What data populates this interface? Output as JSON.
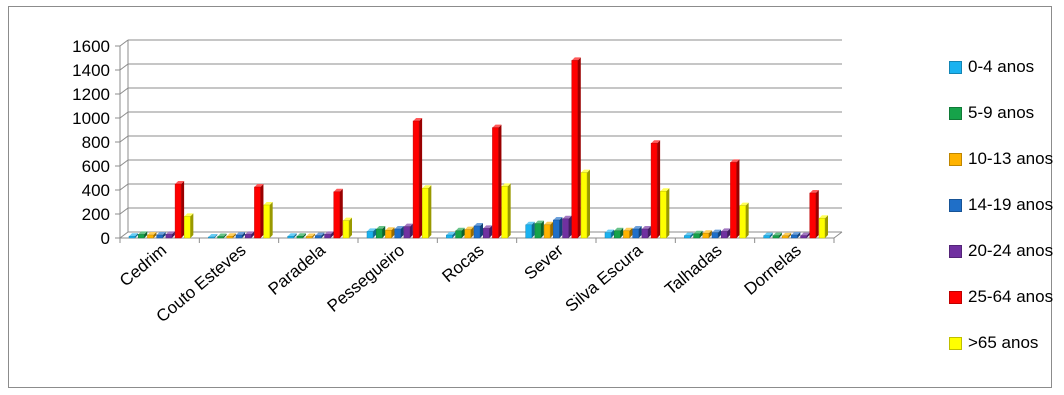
{
  "chart_data": {
    "type": "bar",
    "title": "",
    "xlabel": "",
    "ylabel": "",
    "ylim": [
      0,
      1600
    ],
    "yticks": [
      0,
      200,
      400,
      600,
      800,
      1000,
      1200,
      1400,
      1600
    ],
    "grid": true,
    "legend_position": "right",
    "style": "3d-clustered",
    "categories": [
      "Cedrim",
      "Couto Esteves",
      "Paradela",
      "Pessegueiro",
      "Rocas",
      "Sever",
      "Silva Escura",
      "Talhadas",
      "Dornelas"
    ],
    "series": [
      {
        "name": "0-4 anos",
        "color": "#1ab2f0",
        "values": [
          15,
          8,
          15,
          55,
          25,
          110,
          45,
          20,
          20
        ]
      },
      {
        "name": "5-9 anos",
        "color": "#16a34a",
        "values": [
          30,
          12,
          15,
          75,
          60,
          120,
          60,
          35,
          20
        ]
      },
      {
        "name": "10-13 anos",
        "color": "#ffb300",
        "values": [
          25,
          15,
          12,
          65,
          70,
          110,
          60,
          40,
          18
        ]
      },
      {
        "name": "14-19 anos",
        "color": "#1f6fc8",
        "values": [
          25,
          25,
          20,
          75,
          100,
          150,
          75,
          45,
          25
        ]
      },
      {
        "name": "20-24 anos",
        "color": "#7030a0",
        "values": [
          30,
          30,
          30,
          95,
          80,
          160,
          75,
          55,
          20
        ]
      },
      {
        "name": "25-64 anos",
        "color": "#ff0000",
        "values": [
          450,
          425,
          385,
          975,
          920,
          1480,
          790,
          630,
          375
        ]
      },
      {
        "name": ">65 anos",
        "color": "#ffff00",
        "values": [
          180,
          275,
          145,
          415,
          430,
          545,
          390,
          270,
          165
        ]
      }
    ]
  }
}
